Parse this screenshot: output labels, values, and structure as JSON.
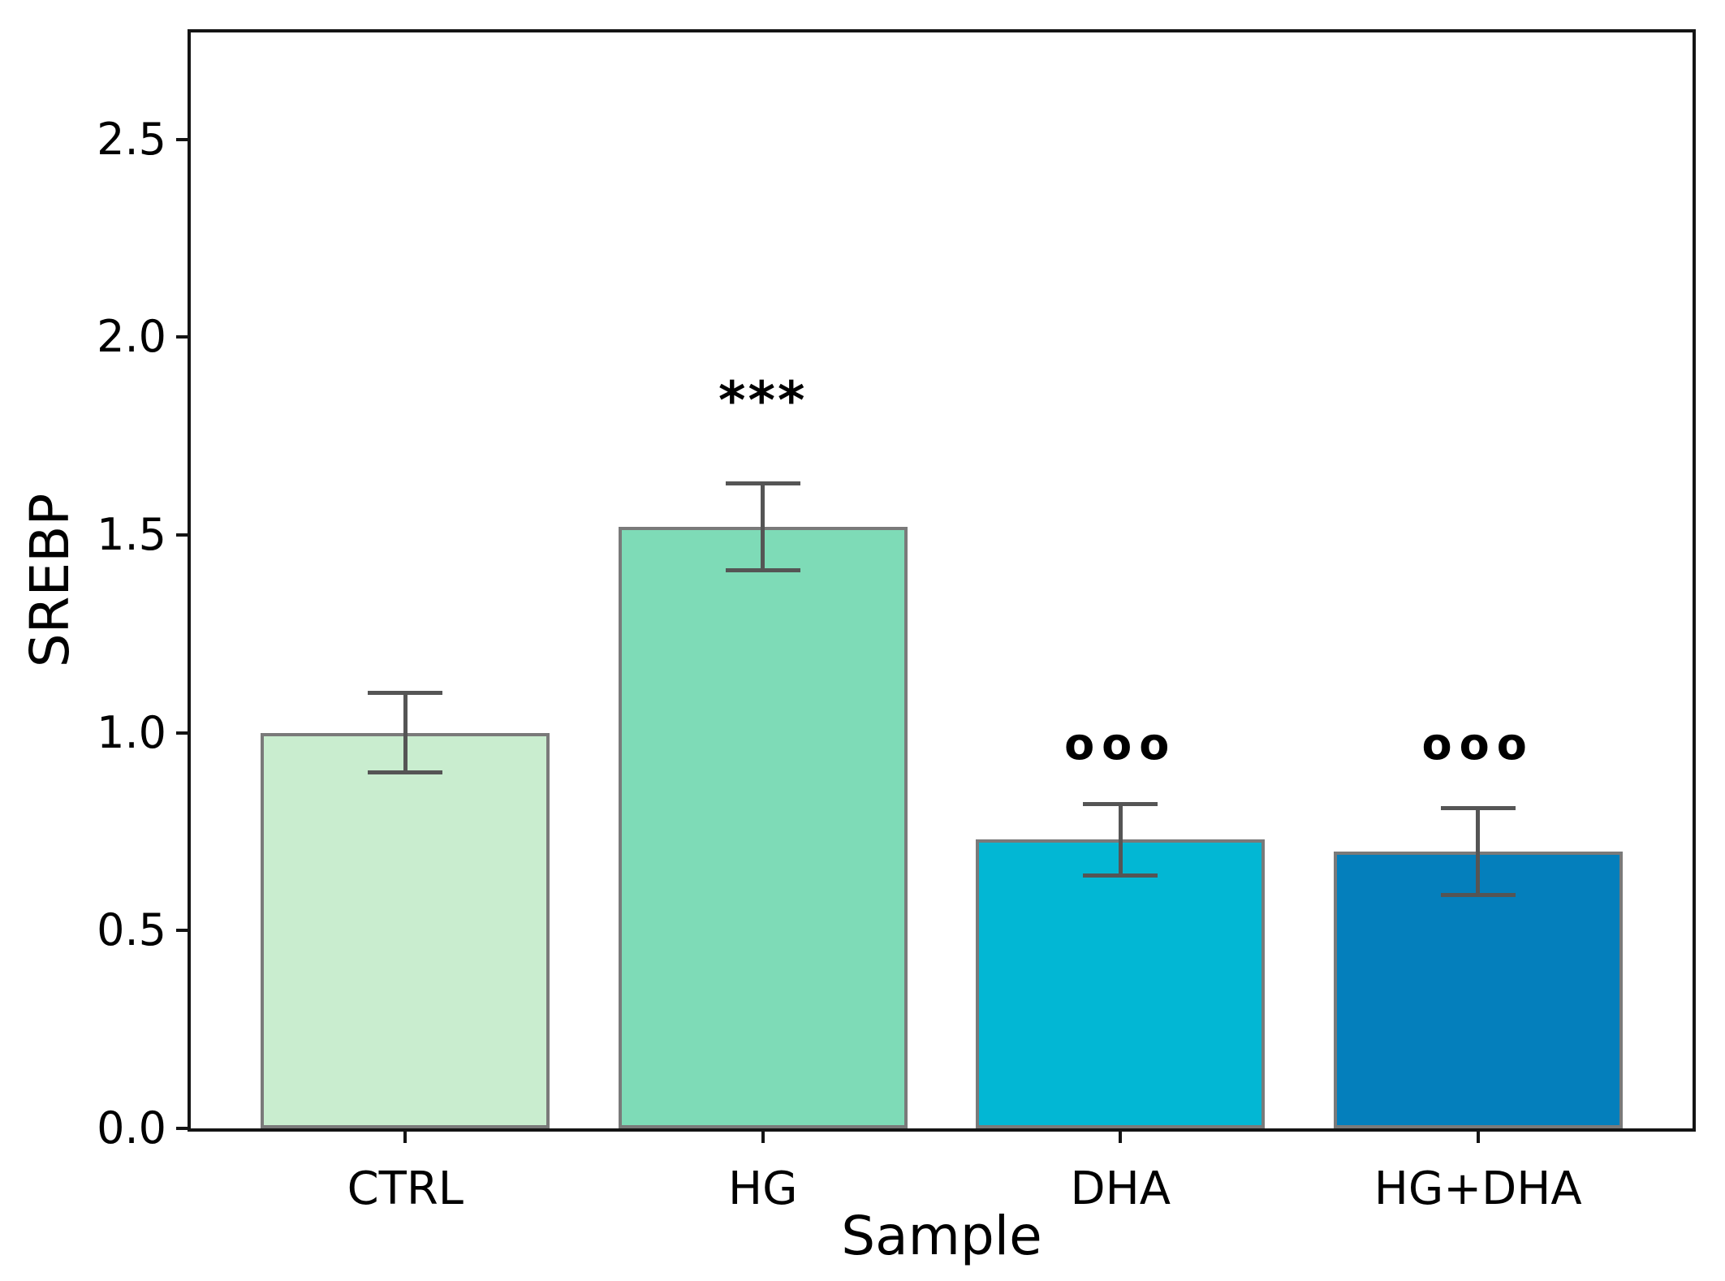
{
  "figure": {
    "background": "#ffffff"
  },
  "chart_data": {
    "type": "bar",
    "title": "",
    "xlabel": "Sample",
    "ylabel": "SREBP",
    "categories": [
      "CTRL",
      "HG",
      "DHA",
      "HG+DHA"
    ],
    "values": [
      1.0,
      1.52,
      0.73,
      0.7
    ],
    "errors": [
      0.1,
      0.11,
      0.09,
      0.11
    ],
    "bar_colors": [
      "#c9edcf",
      "#7edbb7",
      "#02b7d4",
      "#047fbc"
    ],
    "bar_edge_color": "#7a7a7a",
    "error_color": "#555555",
    "axis_color": "#141414",
    "text_color": "#000000",
    "annotations": [
      {
        "category": "HG",
        "text": "***",
        "y": 1.87
      },
      {
        "category": "DHA",
        "text": "ooo",
        "y": 0.97
      },
      {
        "category": "HG+DHA",
        "text": "ooo",
        "y": 0.97
      }
    ],
    "ytick_labels": [
      "0.0",
      "0.5",
      "1.0",
      "1.5",
      "2.0",
      "2.5"
    ],
    "ylim": [
      0,
      2.77
    ],
    "xlim": [
      -0.6,
      3.6
    ],
    "grid": false,
    "legend_position": "none",
    "error_bar_style": "caps"
  }
}
